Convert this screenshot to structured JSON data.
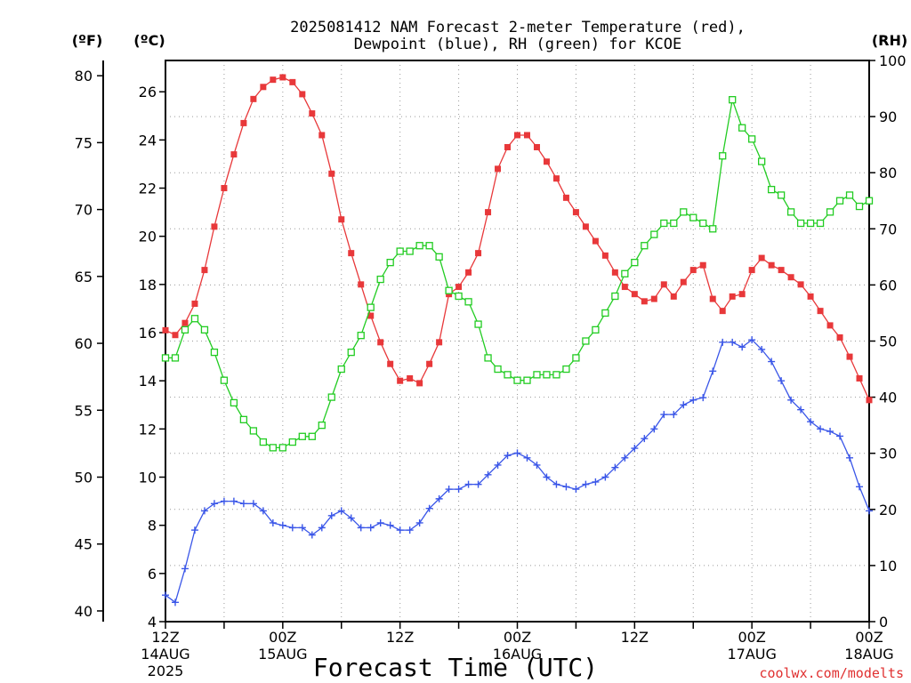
{
  "chart_data": {
    "type": "line",
    "title_line1": "2025081412 NAM Forecast 2-meter Temperature (red),",
    "title_line2": "Dewpoint (blue), RH (green) for KCOE",
    "units": {
      "left_f": "(ºF)",
      "left_c": "(ºC)",
      "right_rh": "(RH)"
    },
    "xlabel": "Forecast Time (UTC)",
    "credit": "coolwx.com/modelts",
    "x_range_hours": [
      0,
      72
    ],
    "x_ticks": [
      {
        "hour": 0,
        "line1": "12Z",
        "line2": "14AUG",
        "line3": "2025"
      },
      {
        "hour": 12,
        "line1": "00Z",
        "line2": "15AUG",
        "line3": ""
      },
      {
        "hour": 24,
        "line1": "12Z",
        "line2": "",
        "line3": ""
      },
      {
        "hour": 36,
        "line1": "00Z",
        "line2": "16AUG",
        "line3": ""
      },
      {
        "hour": 48,
        "line1": "12Z",
        "line2": "",
        "line3": ""
      },
      {
        "hour": 60,
        "line1": "00Z",
        "line2": "17AUG",
        "line3": ""
      },
      {
        "hour": 72,
        "line1": "00Z",
        "line2": "18AUG",
        "line3": ""
      }
    ],
    "celsius_axis": {
      "range": [
        4,
        27.3
      ],
      "ticks": [
        "4",
        "6",
        "8",
        "10",
        "12",
        "14",
        "16",
        "18",
        "20",
        "22",
        "24",
        "26"
      ]
    },
    "fahrenheit_axis": {
      "ticks": [
        "40",
        "45",
        "50",
        "55",
        "60",
        "65",
        "70",
        "75",
        "80"
      ]
    },
    "rh_axis": {
      "range": [
        0,
        100
      ],
      "ticks": [
        "0",
        "10",
        "20",
        "30",
        "40",
        "50",
        "60",
        "70",
        "80",
        "90",
        "100"
      ]
    },
    "grid": true,
    "colors": {
      "temperature": "#e8383a",
      "dewpoint": "#3a56e8",
      "rh": "#22cc22",
      "axis": "#000000",
      "grid": "#9a9a9a",
      "credit": "#e03030"
    },
    "series": [
      {
        "key": "temperature",
        "axis": "celsius",
        "marker": "filled-square",
        "points": [
          [
            0,
            16.1
          ],
          [
            1,
            15.9
          ],
          [
            2,
            16.4
          ],
          [
            3,
            17.2
          ],
          [
            4,
            18.6
          ],
          [
            5,
            20.4
          ],
          [
            6,
            22.0
          ],
          [
            7,
            23.4
          ],
          [
            8,
            24.7
          ],
          [
            9,
            25.7
          ],
          [
            10,
            26.2
          ],
          [
            11,
            26.5
          ],
          [
            12,
            26.6
          ],
          [
            13,
            26.4
          ],
          [
            14,
            25.9
          ],
          [
            15,
            25.1
          ],
          [
            16,
            24.2
          ],
          [
            17,
            22.6
          ],
          [
            18,
            20.7
          ],
          [
            19,
            19.3
          ],
          [
            20,
            18.0
          ],
          [
            21,
            16.7
          ],
          [
            22,
            15.6
          ],
          [
            23,
            14.7
          ],
          [
            24,
            14.0
          ],
          [
            25,
            14.1
          ],
          [
            26,
            13.9
          ],
          [
            27,
            14.7
          ],
          [
            28,
            15.6
          ],
          [
            29,
            17.6
          ],
          [
            30,
            17.9
          ],
          [
            31,
            18.5
          ],
          [
            32,
            19.3
          ],
          [
            33,
            21.0
          ],
          [
            34,
            22.8
          ],
          [
            35,
            23.7
          ],
          [
            36,
            24.2
          ],
          [
            37,
            24.2
          ],
          [
            38,
            23.7
          ],
          [
            39,
            23.1
          ],
          [
            40,
            22.4
          ],
          [
            41,
            21.6
          ],
          [
            42,
            21.0
          ],
          [
            43,
            20.4
          ],
          [
            44,
            19.8
          ],
          [
            45,
            19.2
          ],
          [
            46,
            18.5
          ],
          [
            47,
            17.9
          ],
          [
            48,
            17.6
          ],
          [
            49,
            17.3
          ],
          [
            50,
            17.4
          ],
          [
            51,
            18.0
          ],
          [
            52,
            17.5
          ],
          [
            53,
            18.1
          ],
          [
            54,
            18.6
          ],
          [
            55,
            18.8
          ],
          [
            56,
            17.4
          ],
          [
            57,
            16.9
          ],
          [
            58,
            17.5
          ],
          [
            59,
            17.6
          ],
          [
            60,
            18.6
          ],
          [
            61,
            19.1
          ],
          [
            62,
            18.8
          ],
          [
            63,
            18.6
          ],
          [
            64,
            18.3
          ],
          [
            65,
            18.0
          ],
          [
            66,
            17.5
          ],
          [
            67,
            16.9
          ],
          [
            68,
            16.3
          ],
          [
            69,
            15.8
          ],
          [
            70,
            15.0
          ],
          [
            71,
            14.1
          ],
          [
            72,
            13.2
          ]
        ]
      },
      {
        "key": "dewpoint",
        "axis": "celsius",
        "marker": "plus",
        "points": [
          [
            0,
            5.1
          ],
          [
            1,
            4.8
          ],
          [
            2,
            6.2
          ],
          [
            3,
            7.8
          ],
          [
            4,
            8.6
          ],
          [
            5,
            8.9
          ],
          [
            6,
            9.0
          ],
          [
            7,
            9.0
          ],
          [
            8,
            8.9
          ],
          [
            9,
            8.9
          ],
          [
            10,
            8.6
          ],
          [
            11,
            8.1
          ],
          [
            12,
            8.0
          ],
          [
            13,
            7.9
          ],
          [
            14,
            7.9
          ],
          [
            15,
            7.6
          ],
          [
            16,
            7.9
          ],
          [
            17,
            8.4
          ],
          [
            18,
            8.6
          ],
          [
            19,
            8.3
          ],
          [
            20,
            7.9
          ],
          [
            21,
            7.9
          ],
          [
            22,
            8.1
          ],
          [
            23,
            8.0
          ],
          [
            24,
            7.8
          ],
          [
            25,
            7.8
          ],
          [
            26,
            8.1
          ],
          [
            27,
            8.7
          ],
          [
            28,
            9.1
          ],
          [
            29,
            9.5
          ],
          [
            30,
            9.5
          ],
          [
            31,
            9.7
          ],
          [
            32,
            9.7
          ],
          [
            33,
            10.1
          ],
          [
            34,
            10.5
          ],
          [
            35,
            10.9
          ],
          [
            36,
            11.0
          ],
          [
            37,
            10.8
          ],
          [
            38,
            10.5
          ],
          [
            39,
            10.0
          ],
          [
            40,
            9.7
          ],
          [
            41,
            9.6
          ],
          [
            42,
            9.5
          ],
          [
            43,
            9.7
          ],
          [
            44,
            9.8
          ],
          [
            45,
            10.0
          ],
          [
            46,
            10.4
          ],
          [
            47,
            10.8
          ],
          [
            48,
            11.2
          ],
          [
            49,
            11.6
          ],
          [
            50,
            12.0
          ],
          [
            51,
            12.6
          ],
          [
            52,
            12.6
          ],
          [
            53,
            13.0
          ],
          [
            54,
            13.2
          ],
          [
            55,
            13.3
          ],
          [
            56,
            14.4
          ],
          [
            57,
            15.6
          ],
          [
            58,
            15.6
          ],
          [
            59,
            15.4
          ],
          [
            60,
            15.7
          ],
          [
            61,
            15.3
          ],
          [
            62,
            14.8
          ],
          [
            63,
            14.0
          ],
          [
            64,
            13.2
          ],
          [
            65,
            12.8
          ],
          [
            66,
            12.3
          ],
          [
            67,
            12.0
          ],
          [
            68,
            11.9
          ],
          [
            69,
            11.7
          ],
          [
            70,
            10.8
          ],
          [
            71,
            9.6
          ],
          [
            72,
            8.6
          ]
        ]
      },
      {
        "key": "rh",
        "axis": "rh",
        "marker": "open-square",
        "points": [
          [
            0,
            47
          ],
          [
            1,
            47
          ],
          [
            2,
            52
          ],
          [
            3,
            54
          ],
          [
            4,
            52
          ],
          [
            5,
            48
          ],
          [
            6,
            43
          ],
          [
            7,
            39
          ],
          [
            8,
            36
          ],
          [
            9,
            34
          ],
          [
            10,
            32
          ],
          [
            11,
            31
          ],
          [
            12,
            31
          ],
          [
            13,
            32
          ],
          [
            14,
            33
          ],
          [
            15,
            33
          ],
          [
            16,
            35
          ],
          [
            17,
            40
          ],
          [
            18,
            45
          ],
          [
            19,
            48
          ],
          [
            20,
            51
          ],
          [
            21,
            56
          ],
          [
            22,
            61
          ],
          [
            23,
            64
          ],
          [
            24,
            66
          ],
          [
            25,
            66
          ],
          [
            26,
            67
          ],
          [
            27,
            67
          ],
          [
            28,
            65
          ],
          [
            29,
            59
          ],
          [
            30,
            58
          ],
          [
            31,
            57
          ],
          [
            32,
            53
          ],
          [
            33,
            47
          ],
          [
            34,
            45
          ],
          [
            35,
            44
          ],
          [
            36,
            43
          ],
          [
            37,
            43
          ],
          [
            38,
            44
          ],
          [
            39,
            44
          ],
          [
            40,
            44
          ],
          [
            41,
            45
          ],
          [
            42,
            47
          ],
          [
            43,
            50
          ],
          [
            44,
            52
          ],
          [
            45,
            55
          ],
          [
            46,
            58
          ],
          [
            47,
            62
          ],
          [
            48,
            64
          ],
          [
            49,
            67
          ],
          [
            50,
            69
          ],
          [
            51,
            71
          ],
          [
            52,
            71
          ],
          [
            53,
            73
          ],
          [
            54,
            72
          ],
          [
            55,
            71
          ],
          [
            56,
            70
          ],
          [
            57,
            83
          ],
          [
            58,
            93
          ],
          [
            59,
            88
          ],
          [
            60,
            86
          ],
          [
            61,
            82
          ],
          [
            62,
            77
          ],
          [
            63,
            76
          ],
          [
            64,
            73
          ],
          [
            65,
            71
          ],
          [
            66,
            71
          ],
          [
            67,
            71
          ],
          [
            68,
            73
          ],
          [
            69,
            75
          ],
          [
            70,
            76
          ],
          [
            71,
            74
          ],
          [
            72,
            75
          ]
        ]
      }
    ]
  }
}
